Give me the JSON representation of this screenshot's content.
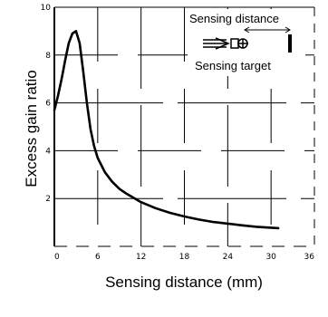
{
  "chart_data": {
    "type": "line",
    "title": "",
    "xlabel": "Sensing distance (mm)",
    "ylabel": "Excess gain ratio",
    "xlim": [
      0,
      36
    ],
    "ylim": [
      0,
      10
    ],
    "x_ticks": [
      0,
      6,
      12,
      18,
      24,
      30,
      36
    ],
    "y_ticks": [
      2,
      4,
      6,
      8,
      10
    ],
    "x_tick_labels": [
      "0",
      "6",
      "12",
      "18",
      "24",
      "30",
      "36"
    ],
    "y_tick_labels": [
      "2",
      "4",
      "6",
      "8",
      "10"
    ],
    "grid": true,
    "legend": "none",
    "series": [
      {
        "x": [
          0,
          0.5,
          1,
          1.5,
          2,
          2.5,
          3,
          3.5,
          4,
          4.5,
          5,
          5.5,
          6,
          7,
          8,
          9,
          10,
          12,
          14,
          16,
          18,
          20,
          22,
          24,
          26,
          28,
          30,
          31
        ],
        "y": [
          5.7,
          6.3,
          7.0,
          7.8,
          8.5,
          8.9,
          9.0,
          8.5,
          7.3,
          6.0,
          4.9,
          4.2,
          3.7,
          3.1,
          2.7,
          2.4,
          2.2,
          1.85,
          1.6,
          1.4,
          1.25,
          1.12,
          1.02,
          0.95,
          0.88,
          0.82,
          0.78,
          0.76
        ]
      }
    ],
    "inset": {
      "top_label": "Sensing distance",
      "bottom_label": "Sensing target"
    },
    "colors": {
      "line": "#000000",
      "grid": "#000000",
      "background": "#ffffff"
    }
  }
}
